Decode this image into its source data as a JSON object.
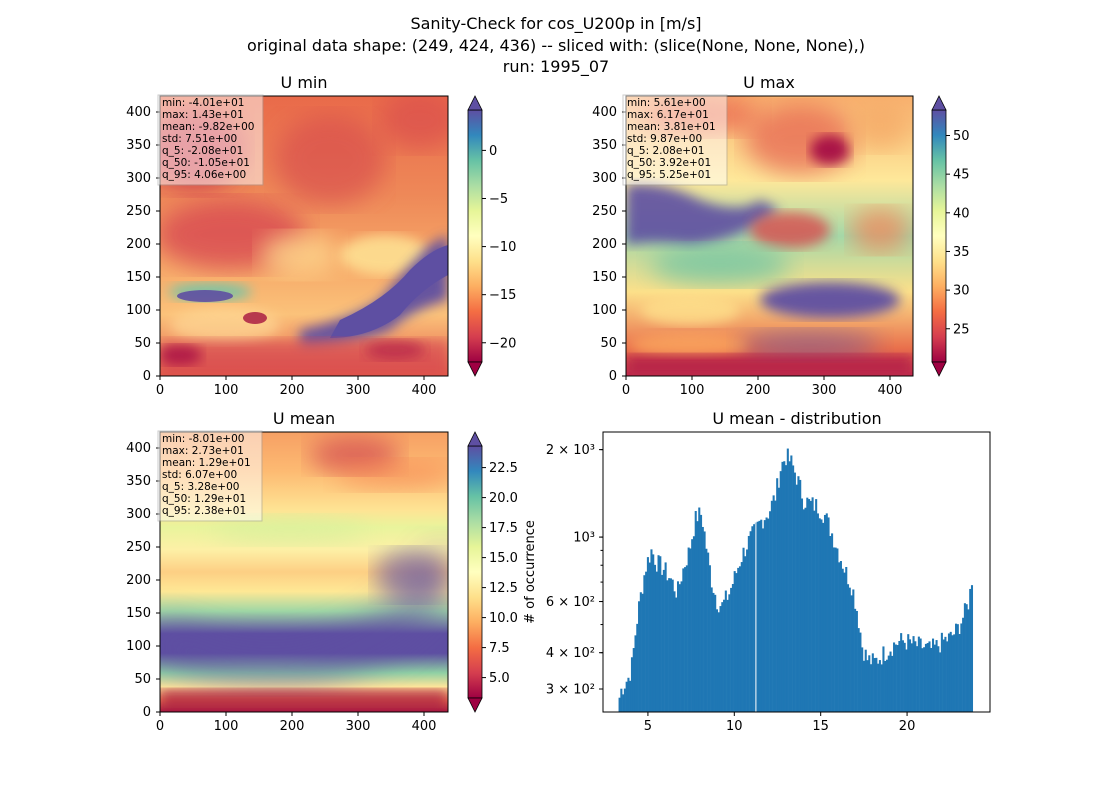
{
  "figure": {
    "title_lines": [
      "Sanity-Check for cos_U200p in [m/s]",
      "original data shape: (249, 424, 436) -- sliced with: (slice(None, None, None),)",
      "run: 1995_07"
    ]
  },
  "colormap": "Spectral",
  "chart_data": [
    {
      "type": "heatmap",
      "title": "U min",
      "x_ticks": [
        0,
        100,
        200,
        300,
        400
      ],
      "y_ticks": [
        0,
        50,
        100,
        150,
        200,
        250,
        300,
        350,
        400
      ],
      "xlim": [
        0,
        436
      ],
      "ylim": [
        0,
        424
      ],
      "colorbar": {
        "min": -22,
        "max": 4.2,
        "ticks": [
          -20,
          -15,
          -10,
          -5,
          0
        ],
        "extend": "both"
      },
      "stats_box": [
        "min: -4.01e+01",
        "max: 1.43e+01",
        "mean: -9.82e+00",
        "std: 7.51e+00",
        "q_5: -2.08e+01",
        "q_50: -1.05e+01",
        "q_95: 4.06e+00"
      ]
    },
    {
      "type": "heatmap",
      "title": "U max",
      "x_ticks": [
        0,
        100,
        200,
        300,
        400
      ],
      "y_ticks": [
        0,
        50,
        100,
        150,
        200,
        250,
        300,
        350,
        400
      ],
      "xlim": [
        0,
        436
      ],
      "ylim": [
        0,
        424
      ],
      "colorbar": {
        "min": 20.7,
        "max": 53.3,
        "ticks": [
          25,
          30,
          35,
          40,
          45,
          50
        ],
        "extend": "both"
      },
      "stats_box": [
        "min: 5.61e+00",
        "max: 6.17e+01",
        "mean: 3.81e+01",
        "std: 9.87e+00",
        "q_5: 2.08e+01",
        "q_50: 3.92e+01",
        "q_95: 5.25e+01"
      ]
    },
    {
      "type": "heatmap",
      "title": "U mean",
      "x_ticks": [
        0,
        100,
        200,
        300,
        400
      ],
      "y_ticks": [
        0,
        50,
        100,
        150,
        200,
        250,
        300,
        350,
        400
      ],
      "xlim": [
        0,
        436
      ],
      "ylim": [
        0,
        424
      ],
      "colorbar": {
        "min": 3.3,
        "max": 24.3,
        "ticks": [
          5.0,
          7.5,
          10.0,
          12.5,
          15.0,
          17.5,
          20.0,
          22.5
        ],
        "extend": "both"
      },
      "stats_box": [
        "min: -8.01e+00",
        "max: 2.73e+01",
        "mean: 1.29e+01",
        "std: 6.07e+00",
        "q_5: 3.28e+00",
        "q_50: 1.29e+01",
        "q_95: 2.38e+01"
      ]
    },
    {
      "type": "bar",
      "title": "U mean - distribution",
      "ylabel": "# of occurrence",
      "yscale": "log",
      "xlim": [
        2.4,
        24.8
      ],
      "ylim": [
        250,
        2300
      ],
      "bar_color": "#1f77b4",
      "x_ticks": [
        5,
        10,
        15,
        20
      ],
      "y_ticks": [
        {
          "value": 300,
          "label": "3 × 10²"
        },
        {
          "value": 400,
          "label": "4 × 10²"
        },
        {
          "value": 600,
          "label": "6 × 10²"
        },
        {
          "value": 1000,
          "label": "10³"
        },
        {
          "value": 2000,
          "label": "2 × 10³"
        }
      ],
      "histogram_anchors": [
        [
          3.3,
          285
        ],
        [
          3.6,
          310
        ],
        [
          3.9,
          330
        ],
        [
          4.1,
          370
        ],
        [
          4.3,
          480
        ],
        [
          4.6,
          640
        ],
        [
          4.9,
          800
        ],
        [
          5.2,
          900
        ],
        [
          5.5,
          820
        ],
        [
          5.9,
          780
        ],
        [
          6.3,
          720
        ],
        [
          6.7,
          640
        ],
        [
          7.0,
          760
        ],
        [
          7.4,
          900
        ],
        [
          7.8,
          1180
        ],
        [
          8.1,
          1200
        ],
        [
          8.4,
          900
        ],
        [
          8.7,
          700
        ],
        [
          9.0,
          600
        ],
        [
          9.3,
          580
        ],
        [
          9.7,
          640
        ],
        [
          10.0,
          720
        ],
        [
          10.4,
          850
        ],
        [
          10.8,
          960
        ],
        [
          11.2,
          1050
        ],
        [
          11.6,
          1150
        ],
        [
          12.0,
          1220
        ],
        [
          12.4,
          1400
        ],
        [
          12.7,
          1750
        ],
        [
          13.0,
          1900
        ],
        [
          13.3,
          1800
        ],
        [
          13.7,
          1550
        ],
        [
          14.0,
          1350
        ],
        [
          14.4,
          1300
        ],
        [
          14.8,
          1280
        ],
        [
          15.2,
          1200
        ],
        [
          15.6,
          1050
        ],
        [
          16.0,
          900
        ],
        [
          16.4,
          770
        ],
        [
          16.8,
          680
        ],
        [
          17.1,
          560
        ],
        [
          17.4,
          420
        ],
        [
          17.7,
          380
        ],
        [
          18.1,
          370
        ],
        [
          18.5,
          390
        ],
        [
          18.9,
          410
        ],
        [
          19.3,
          430
        ],
        [
          19.7,
          440
        ],
        [
          20.1,
          435
        ],
        [
          20.5,
          425
        ],
        [
          20.9,
          420
        ],
        [
          21.3,
          410
        ],
        [
          21.7,
          420
        ],
        [
          22.1,
          440
        ],
        [
          22.5,
          450
        ],
        [
          22.9,
          480
        ],
        [
          23.3,
          540
        ],
        [
          23.6,
          610
        ],
        [
          23.8,
          760
        ]
      ]
    }
  ]
}
